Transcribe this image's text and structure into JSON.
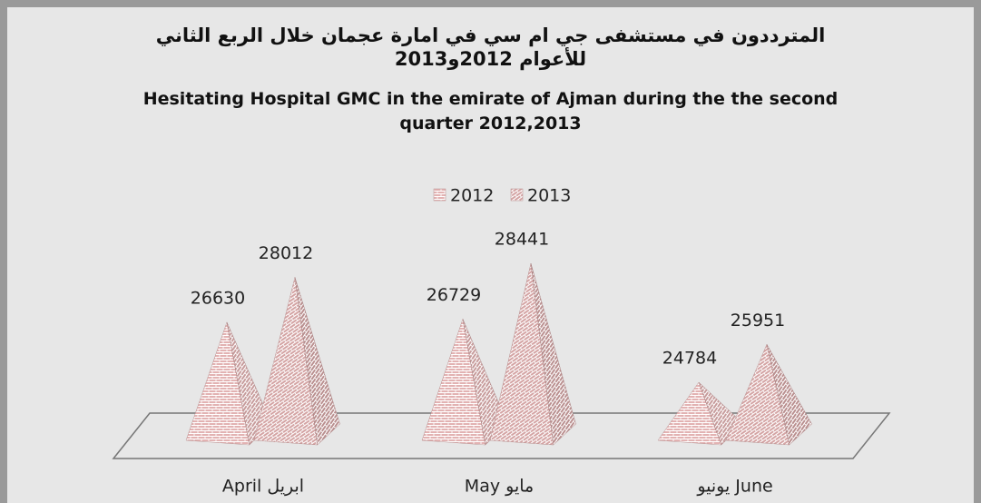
{
  "chart_data": {
    "type": "pyramid",
    "title_ar": "المترددون في مستشفى جي ام سي في امارة عجمان خلال الربع الثاني للأعوام 2012و2013",
    "title": "Hesitating Hospital GMC in the emirate of Ajman during the the second quarter 2012,2013",
    "categories": [
      "April ابريل",
      "May مايو",
      "يونيو June"
    ],
    "series": [
      {
        "name": "2012",
        "color": "#e2b2b2",
        "values": [
          26630,
          26729,
          24784
        ]
      },
      {
        "name": "2013",
        "color": "#d4a4a4",
        "values": [
          28012,
          28441,
          25951
        ]
      }
    ],
    "ylim": [
      23000,
      29000
    ],
    "legend": "top"
  }
}
